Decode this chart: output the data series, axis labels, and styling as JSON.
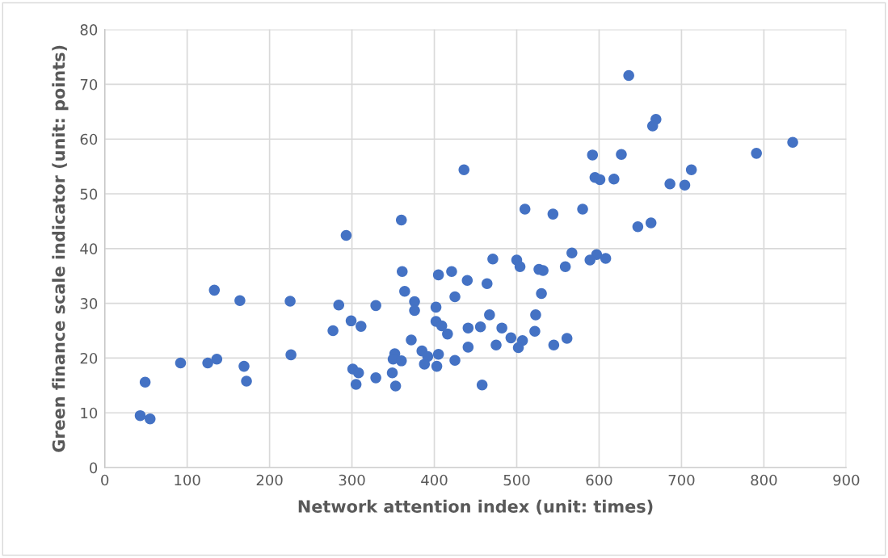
{
  "chart_data": {
    "type": "scatter",
    "xlabel": "Network attention index (unit: times)",
    "ylabel": "Green finance scale indicator (unit: points)",
    "xlim": [
      0,
      900
    ],
    "xticks": [
      0,
      100,
      200,
      300,
      400,
      500,
      600,
      700,
      800,
      900
    ],
    "ylim": [
      0,
      80
    ],
    "yticks": [
      0,
      10,
      20,
      30,
      40,
      50,
      60,
      70,
      80
    ],
    "grid": true,
    "marker": "circle",
    "series": [
      {
        "color": "#4472c4",
        "x": [
          293,
          360,
          436,
          510,
          544,
          580,
          592,
          595,
          636,
          669,
          665,
          627,
          791,
          835,
          601,
          618,
          712,
          686,
          704,
          647,
          663,
          597,
          608,
          567,
          589,
          471,
          500,
          504,
          527,
          532,
          559,
          361,
          405,
          421,
          440,
          464,
          364,
          425,
          530,
          284,
          329,
          376,
          376,
          402,
          467,
          523,
          299,
          311,
          402,
          409,
          416,
          441,
          456,
          482,
          522,
          493,
          507,
          502,
          475,
          545,
          561,
          441,
          372,
          385,
          392,
          388,
          405,
          403,
          425,
          352,
          350,
          360,
          349,
          353,
          329,
          301,
          308,
          305,
          458,
          133,
          164,
          225,
          277,
          226,
          92,
          125,
          136,
          169,
          172,
          49,
          43,
          55
        ],
        "values": [
          42.4,
          45.2,
          54.4,
          47.2,
          46.3,
          47.2,
          57.1,
          53.0,
          71.6,
          63.6,
          62.4,
          57.2,
          57.4,
          59.4,
          52.6,
          52.7,
          54.4,
          51.8,
          51.6,
          44.0,
          44.7,
          38.9,
          38.2,
          39.2,
          37.9,
          38.1,
          37.9,
          36.7,
          36.2,
          36.0,
          36.7,
          35.8,
          35.2,
          35.8,
          34.2,
          33.6,
          32.2,
          31.2,
          31.8,
          29.7,
          29.6,
          30.3,
          28.7,
          29.3,
          27.9,
          27.9,
          26.8,
          25.8,
          26.7,
          25.9,
          24.4,
          25.5,
          25.7,
          25.5,
          24.9,
          23.7,
          23.2,
          21.9,
          22.4,
          22.4,
          23.6,
          22.0,
          23.3,
          21.3,
          20.3,
          18.9,
          20.7,
          18.5,
          19.6,
          20.8,
          19.8,
          19.5,
          17.3,
          14.9,
          16.4,
          18.0,
          17.3,
          15.2,
          15.1,
          32.4,
          30.5,
          30.4,
          25.0,
          20.6,
          19.1,
          19.1,
          19.8,
          18.5,
          15.8,
          15.6,
          9.5,
          8.9
        ]
      }
    ]
  }
}
